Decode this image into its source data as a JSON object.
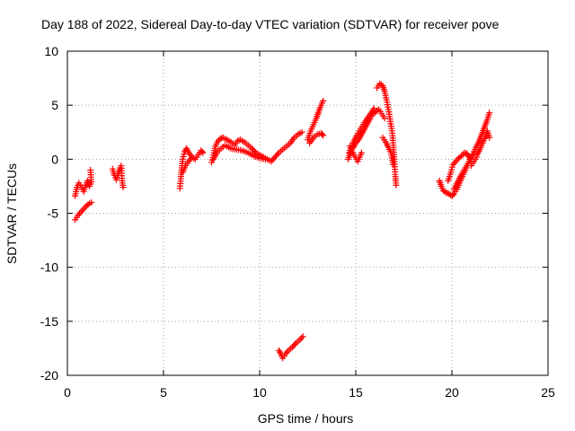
{
  "chart_data": {
    "type": "scatter",
    "title": "Day 188 of 2022, Sidereal Day-to-day VTEC variation (SDTVAR) for receiver pove",
    "xlabel": "GPS time / hours",
    "ylabel": "SDTVAR / TECUs",
    "xlim": [
      0,
      25
    ],
    "ylim": [
      -20,
      10
    ],
    "x_ticks": [
      0,
      5,
      10,
      15,
      20,
      25
    ],
    "y_ticks": [
      -20,
      -15,
      -10,
      -5,
      0,
      5,
      10
    ],
    "x_tick_labels": [
      "0",
      "5",
      "10",
      "15",
      "20",
      "25"
    ],
    "y_tick_labels": [
      "-20",
      "-15",
      "-10",
      "-5",
      "0",
      "5",
      "10"
    ],
    "grid": true,
    "marker": "plus",
    "series": [
      {
        "name": "SDTVAR",
        "color": "#ff0000",
        "segments": [
          [
            [
              0.4,
              -5.6
            ],
            [
              0.55,
              -5.2
            ],
            [
              0.7,
              -4.9
            ],
            [
              0.85,
              -4.6
            ],
            [
              1.0,
              -4.3
            ],
            [
              1.15,
              -4.1
            ],
            [
              1.25,
              -4.0
            ]
          ],
          [
            [
              0.4,
              -3.4
            ],
            [
              0.5,
              -2.6
            ],
            [
              0.6,
              -2.2
            ],
            [
              0.75,
              -2.6
            ],
            [
              0.85,
              -3.0
            ],
            [
              0.95,
              -2.4
            ],
            [
              1.05,
              -2.0
            ],
            [
              1.15,
              -2.5
            ],
            [
              1.25,
              -2.1
            ],
            [
              1.2,
              -1.0
            ]
          ],
          [
            [
              2.35,
              -0.9
            ],
            [
              2.45,
              -1.5
            ],
            [
              2.55,
              -1.9
            ],
            [
              2.65,
              -1.3
            ],
            [
              2.75,
              -0.8
            ],
            [
              2.8,
              -0.6
            ],
            [
              2.85,
              -2.0
            ],
            [
              2.9,
              -2.6
            ]
          ],
          [
            [
              5.85,
              -2.7
            ],
            [
              5.9,
              -1.8
            ],
            [
              5.95,
              -0.8
            ],
            [
              6.0,
              0.0
            ],
            [
              6.1,
              0.7
            ],
            [
              6.2,
              1.0
            ],
            [
              6.35,
              0.5
            ],
            [
              6.5,
              0.2
            ],
            [
              6.65,
              0.0
            ],
            [
              6.8,
              0.4
            ],
            [
              6.95,
              0.8
            ],
            [
              7.05,
              0.6
            ]
          ],
          [
            [
              6.0,
              -1.2
            ],
            [
              6.15,
              -0.6
            ],
            [
              6.3,
              -0.2
            ],
            [
              6.45,
              0.1
            ]
          ],
          [
            [
              7.5,
              -0.3
            ],
            [
              7.6,
              0.4
            ],
            [
              7.7,
              1.2
            ],
            [
              7.8,
              1.6
            ],
            [
              7.95,
              1.9
            ],
            [
              8.1,
              2.0
            ],
            [
              8.3,
              1.8
            ],
            [
              8.5,
              1.6
            ],
            [
              8.7,
              1.3
            ],
            [
              8.85,
              1.7
            ],
            [
              9.0,
              1.8
            ],
            [
              9.2,
              1.6
            ],
            [
              9.4,
              1.3
            ],
            [
              9.6,
              1.0
            ],
            [
              9.8,
              0.6
            ],
            [
              10.0,
              0.4
            ],
            [
              10.2,
              0.2
            ],
            [
              10.4,
              0.0
            ],
            [
              10.6,
              -0.2
            ],
            [
              10.8,
              0.2
            ],
            [
              11.0,
              0.6
            ],
            [
              11.2,
              0.9
            ],
            [
              11.4,
              1.2
            ],
            [
              11.6,
              1.5
            ],
            [
              11.8,
              2.0
            ],
            [
              12.0,
              2.3
            ],
            [
              12.2,
              2.5
            ]
          ],
          [
            [
              7.6,
              0.0
            ],
            [
              7.8,
              0.7
            ],
            [
              8.0,
              1.0
            ],
            [
              8.2,
              1.3
            ],
            [
              8.5,
              1.0
            ],
            [
              8.8,
              0.9
            ],
            [
              9.1,
              0.8
            ],
            [
              9.4,
              0.6
            ],
            [
              9.7,
              0.3
            ],
            [
              10.0,
              0.1
            ],
            [
              10.3,
              0.0
            ]
          ],
          [
            [
              12.5,
              1.8
            ],
            [
              12.65,
              2.6
            ],
            [
              12.8,
              3.2
            ],
            [
              12.95,
              3.8
            ],
            [
              13.05,
              4.3
            ],
            [
              13.15,
              4.8
            ],
            [
              13.3,
              5.4
            ]
          ],
          [
            [
              12.6,
              1.5
            ],
            [
              12.8,
              2.0
            ],
            [
              13.0,
              2.3
            ],
            [
              13.2,
              2.4
            ],
            [
              13.3,
              2.2
            ]
          ],
          [
            [
              11.0,
              -17.7
            ],
            [
              11.1,
              -18.0
            ],
            [
              11.2,
              -18.4
            ],
            [
              11.35,
              -18.0
            ],
            [
              11.5,
              -17.7
            ],
            [
              11.7,
              -17.4
            ],
            [
              11.9,
              -17.0
            ],
            [
              12.1,
              -16.7
            ],
            [
              12.25,
              -16.4
            ]
          ],
          [
            [
              14.6,
              0.0
            ],
            [
              14.7,
              0.5
            ],
            [
              14.8,
              1.0
            ],
            [
              14.9,
              1.2
            ],
            [
              15.0,
              1.5
            ],
            [
              15.15,
              1.8
            ],
            [
              15.3,
              2.3
            ],
            [
              15.45,
              2.8
            ],
            [
              15.6,
              3.3
            ],
            [
              15.75,
              3.8
            ],
            [
              15.9,
              4.2
            ],
            [
              16.05,
              4.4
            ],
            [
              16.2,
              4.6
            ],
            [
              16.35,
              4.2
            ],
            [
              16.5,
              3.8
            ]
          ],
          [
            [
              14.65,
              0.6
            ],
            [
              14.85,
              1.5
            ],
            [
              15.05,
              2.2
            ],
            [
              15.25,
              2.8
            ],
            [
              15.45,
              3.4
            ],
            [
              15.65,
              3.9
            ],
            [
              15.85,
              4.4
            ],
            [
              15.95,
              4.7
            ]
          ],
          [
            [
              14.7,
              1.2
            ],
            [
              14.9,
              0.4
            ],
            [
              15.1,
              -0.2
            ],
            [
              15.3,
              0.6
            ]
          ],
          [
            [
              16.1,
              6.6
            ],
            [
              16.25,
              7.0
            ],
            [
              16.4,
              6.8
            ],
            [
              16.5,
              6.3
            ],
            [
              16.6,
              5.5
            ],
            [
              16.7,
              4.6
            ],
            [
              16.8,
              3.5
            ],
            [
              16.9,
              2.4
            ],
            [
              16.95,
              1.3
            ],
            [
              17.0,
              0.0
            ],
            [
              17.05,
              -1.4
            ],
            [
              17.1,
              -2.4
            ]
          ],
          [
            [
              16.4,
              2.0
            ],
            [
              16.55,
              1.6
            ],
            [
              16.7,
              1.1
            ],
            [
              16.85,
              0.5
            ],
            [
              16.95,
              -0.5
            ]
          ],
          [
            [
              19.35,
              -2.0
            ],
            [
              19.45,
              -2.5
            ],
            [
              19.55,
              -2.9
            ],
            [
              19.7,
              -3.1
            ],
            [
              19.85,
              -3.2
            ],
            [
              20.0,
              -3.4
            ],
            [
              20.1,
              -3.2
            ],
            [
              20.25,
              -2.8
            ],
            [
              20.4,
              -2.2
            ],
            [
              20.55,
              -1.6
            ],
            [
              20.7,
              -1.0
            ],
            [
              20.85,
              -0.4
            ]
          ],
          [
            [
              19.8,
              -2.0
            ],
            [
              19.95,
              -1.2
            ],
            [
              20.05,
              -0.5
            ],
            [
              20.2,
              -0.2
            ],
            [
              20.35,
              0.1
            ],
            [
              20.5,
              0.3
            ],
            [
              20.65,
              0.6
            ],
            [
              20.8,
              0.5
            ],
            [
              20.9,
              0.2
            ],
            [
              21.0,
              0.0
            ]
          ],
          [
            [
              20.1,
              -2.8
            ],
            [
              20.3,
              -2.1
            ],
            [
              20.5,
              -1.4
            ],
            [
              20.7,
              -0.8
            ],
            [
              20.9,
              -0.2
            ],
            [
              21.1,
              0.5
            ],
            [
              21.25,
              1.1
            ],
            [
              21.4,
              1.6
            ],
            [
              21.55,
              2.3
            ],
            [
              21.7,
              3.0
            ],
            [
              21.85,
              3.7
            ],
            [
              21.95,
              4.3
            ]
          ],
          [
            [
              21.3,
              0.4
            ],
            [
              21.45,
              0.9
            ],
            [
              21.6,
              1.5
            ],
            [
              21.75,
              2.1
            ],
            [
              21.85,
              2.6
            ],
            [
              21.95,
              2.0
            ]
          ],
          [
            [
              21.0,
              -0.6
            ],
            [
              21.15,
              -0.2
            ],
            [
              21.3,
              0.2
            ]
          ]
        ]
      }
    ]
  }
}
